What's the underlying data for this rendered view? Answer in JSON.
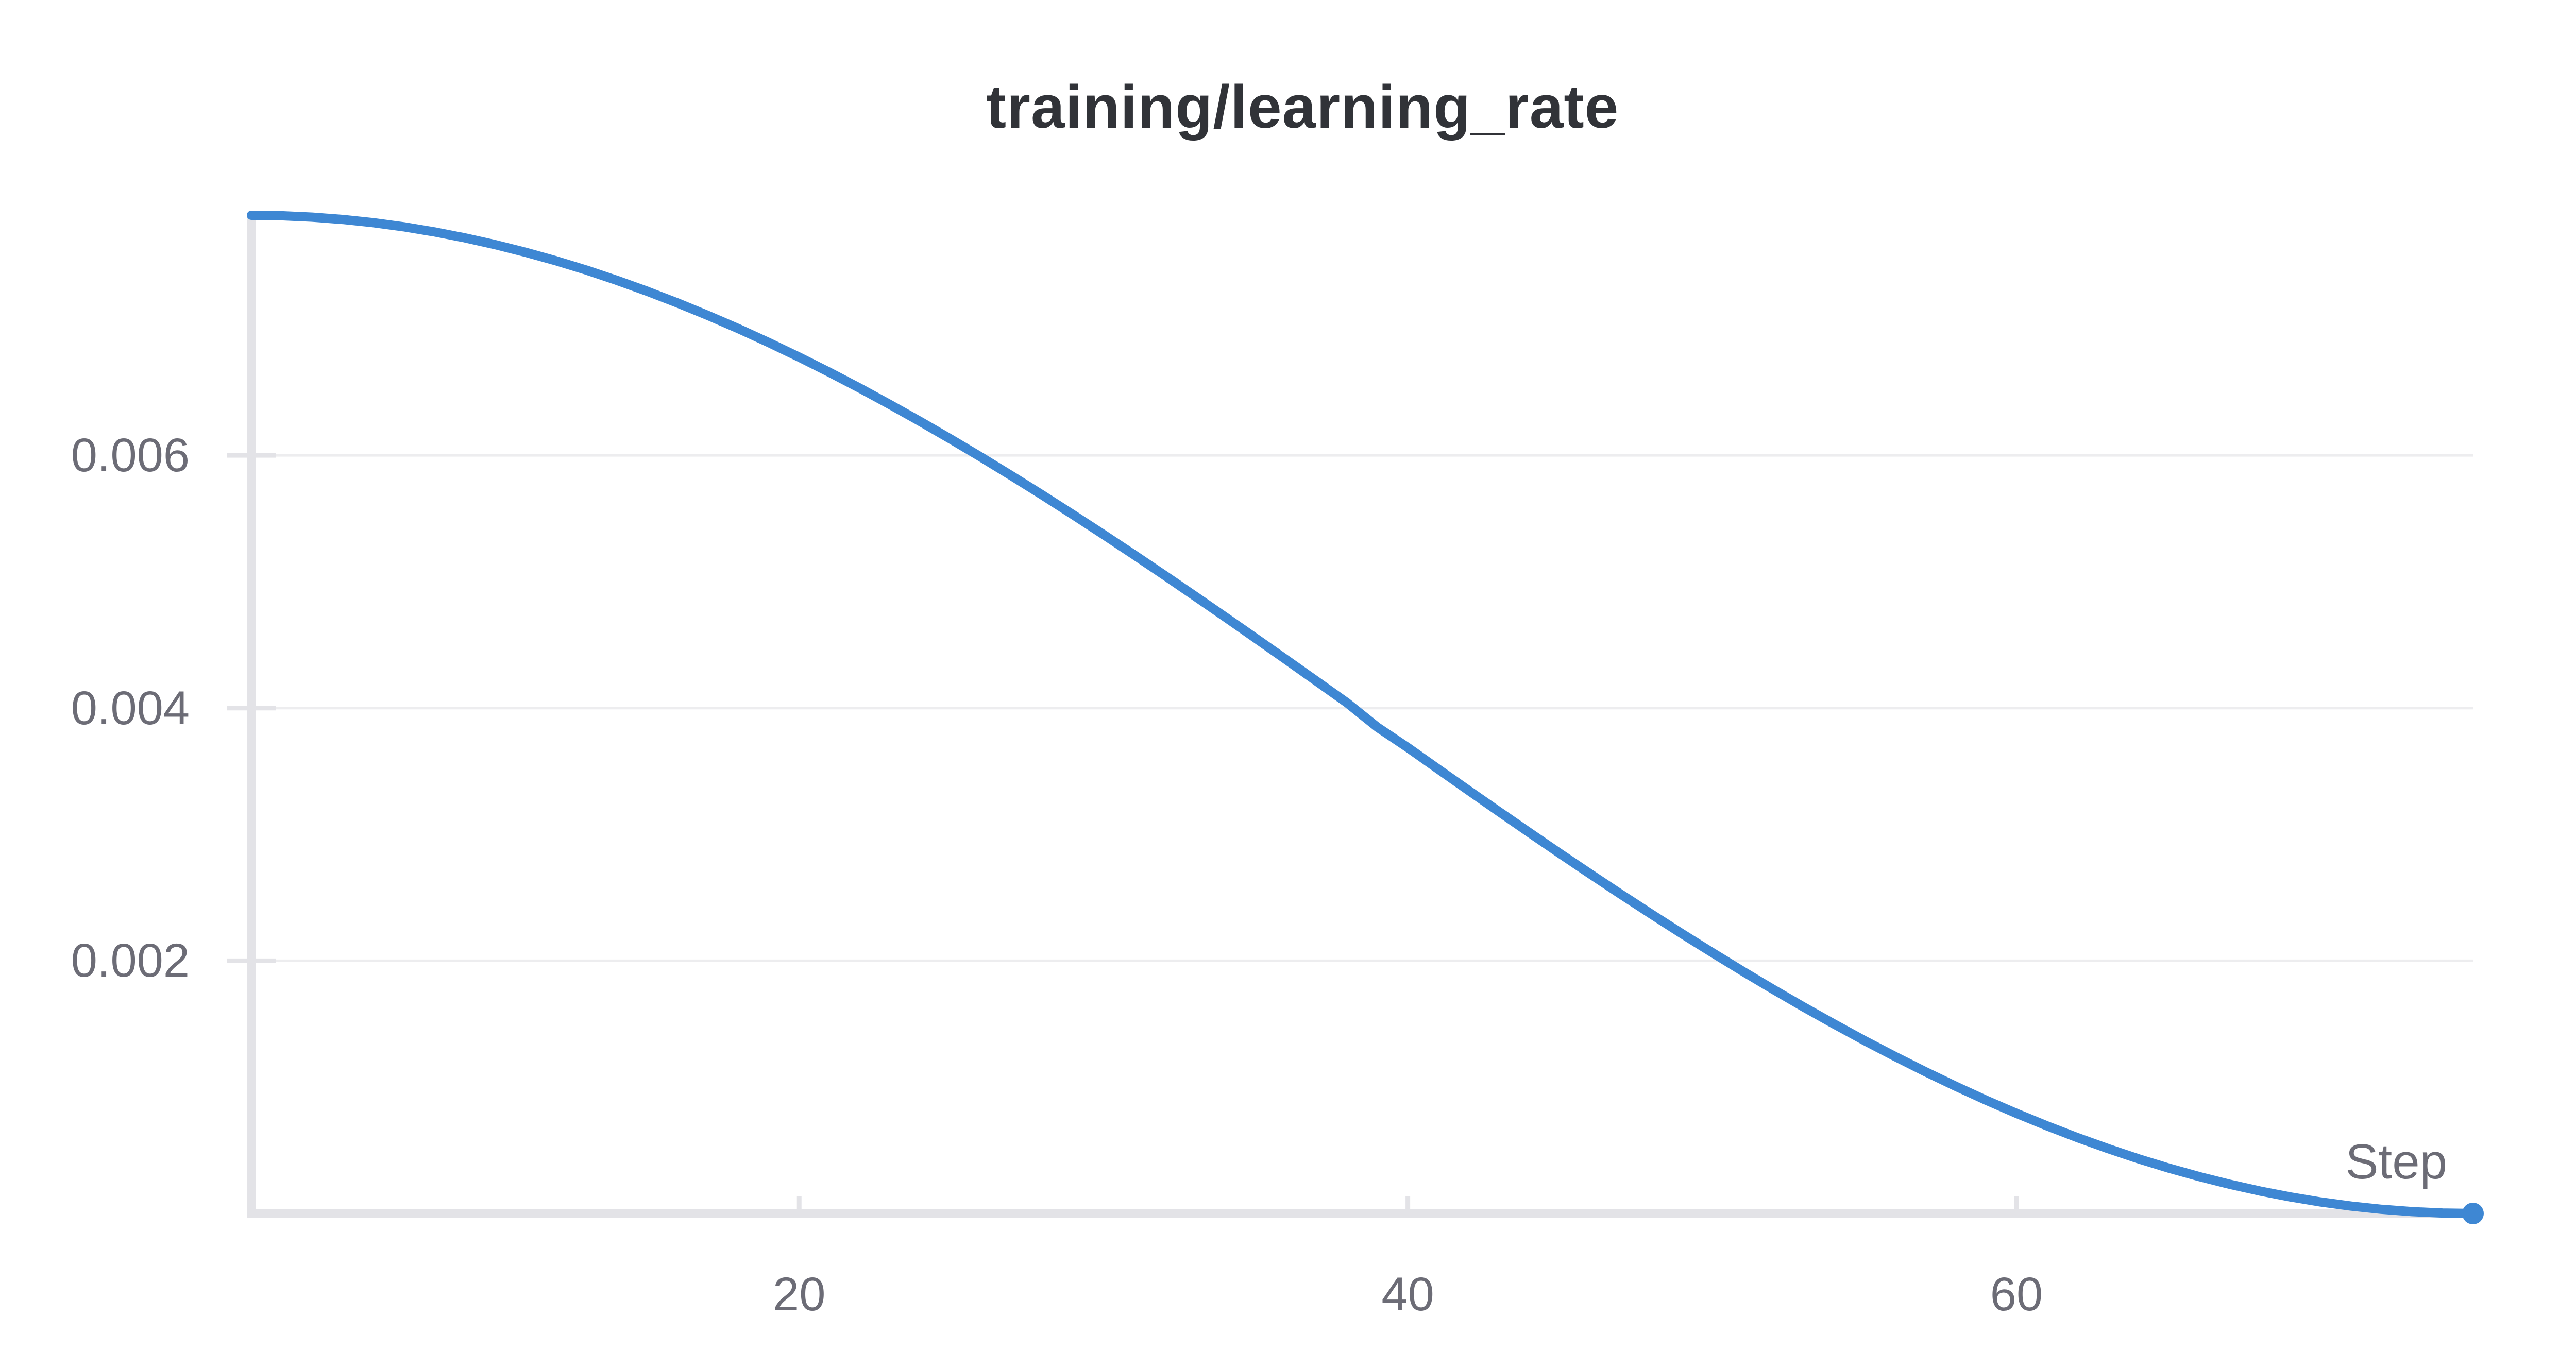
{
  "page": {
    "background": "#ffffff"
  },
  "chart_data": {
    "type": "line",
    "title": "training/learning_rate",
    "xlabel": "Step",
    "ylabel": "",
    "legend": "none",
    "grid": "horizontal-only",
    "x_domain": [
      2,
      75
    ],
    "y_domain": [
      0,
      0.0079
    ],
    "x_ticks": [
      {
        "value": 20,
        "label": "20"
      },
      {
        "value": 40,
        "label": "40"
      },
      {
        "value": 60,
        "label": "60"
      }
    ],
    "y_ticks": [
      {
        "value": 0.002,
        "label": "0.002"
      },
      {
        "value": 0.004,
        "label": "0.004"
      },
      {
        "value": 0.006,
        "label": "0.006"
      }
    ],
    "series": [
      {
        "name": "training/learning_rate",
        "shape": "cosine-decay",
        "endpoint_marker": true,
        "x": [
          2,
          3,
          4,
          5,
          6,
          7,
          8,
          9,
          10,
          11,
          12,
          13,
          14,
          15,
          16,
          17,
          18,
          19,
          20,
          21,
          22,
          23,
          24,
          25,
          26,
          27,
          28,
          29,
          30,
          31,
          32,
          33,
          34,
          35,
          36,
          37,
          38,
          39,
          40,
          41,
          42,
          43,
          44,
          45,
          46,
          47,
          48,
          49,
          50,
          51,
          52,
          53,
          54,
          55,
          56,
          57,
          58,
          59,
          60,
          61,
          62,
          63,
          64,
          65,
          66,
          67,
          68,
          69,
          70,
          71,
          72,
          73,
          74,
          75
        ],
        "y": [
          0.0079,
          0.0078963,
          0.0078854,
          0.0078671,
          0.0078416,
          0.0078089,
          0.0077691,
          0.0077223,
          0.0076685,
          0.0076078,
          0.0075404,
          0.0074665,
          0.007386,
          0.0072993,
          0.0072064,
          0.0071076,
          0.007003,
          0.0068928,
          0.0067772,
          0.0066564,
          0.0065306,
          0.0064,
          0.006265,
          0.0061256,
          0.0059823,
          0.0058351,
          0.0056843,
          0.0055303,
          0.0053733,
          0.0052135,
          0.0050513,
          0.0048869,
          0.0047205,
          0.0045525,
          0.0043832,
          0.0042128,
          0.0040417,
          0.0038483,
          0.0036872,
          0.0035168,
          0.0033475,
          0.0031795,
          0.0030131,
          0.0028487,
          0.0026865,
          0.0025267,
          0.0023697,
          0.0022157,
          0.0020649,
          0.0019177,
          0.0017744,
          0.001635,
          0.0015,
          0.0013694,
          0.0012436,
          0.0011228,
          0.0010072,
          0.000897,
          0.0007924,
          0.0006936,
          0.0006007,
          0.000514,
          0.0004335,
          0.0003596,
          0.0002922,
          0.0002315,
          0.0001777,
          0.0001309,
          9.11e-05,
          5.84e-05,
          3.29e-05,
          1.46e-05,
          3.7e-06,
          0
        ]
      }
    ],
    "colors": {
      "line": "#3e87d3",
      "marker": "#3e87d3",
      "grid": "#ededef",
      "axis": "#e3e3e7",
      "tick": "#e3e3e7",
      "title_text": "#313338",
      "label_text": "#6c6c76",
      "background": "#ffffff"
    }
  }
}
